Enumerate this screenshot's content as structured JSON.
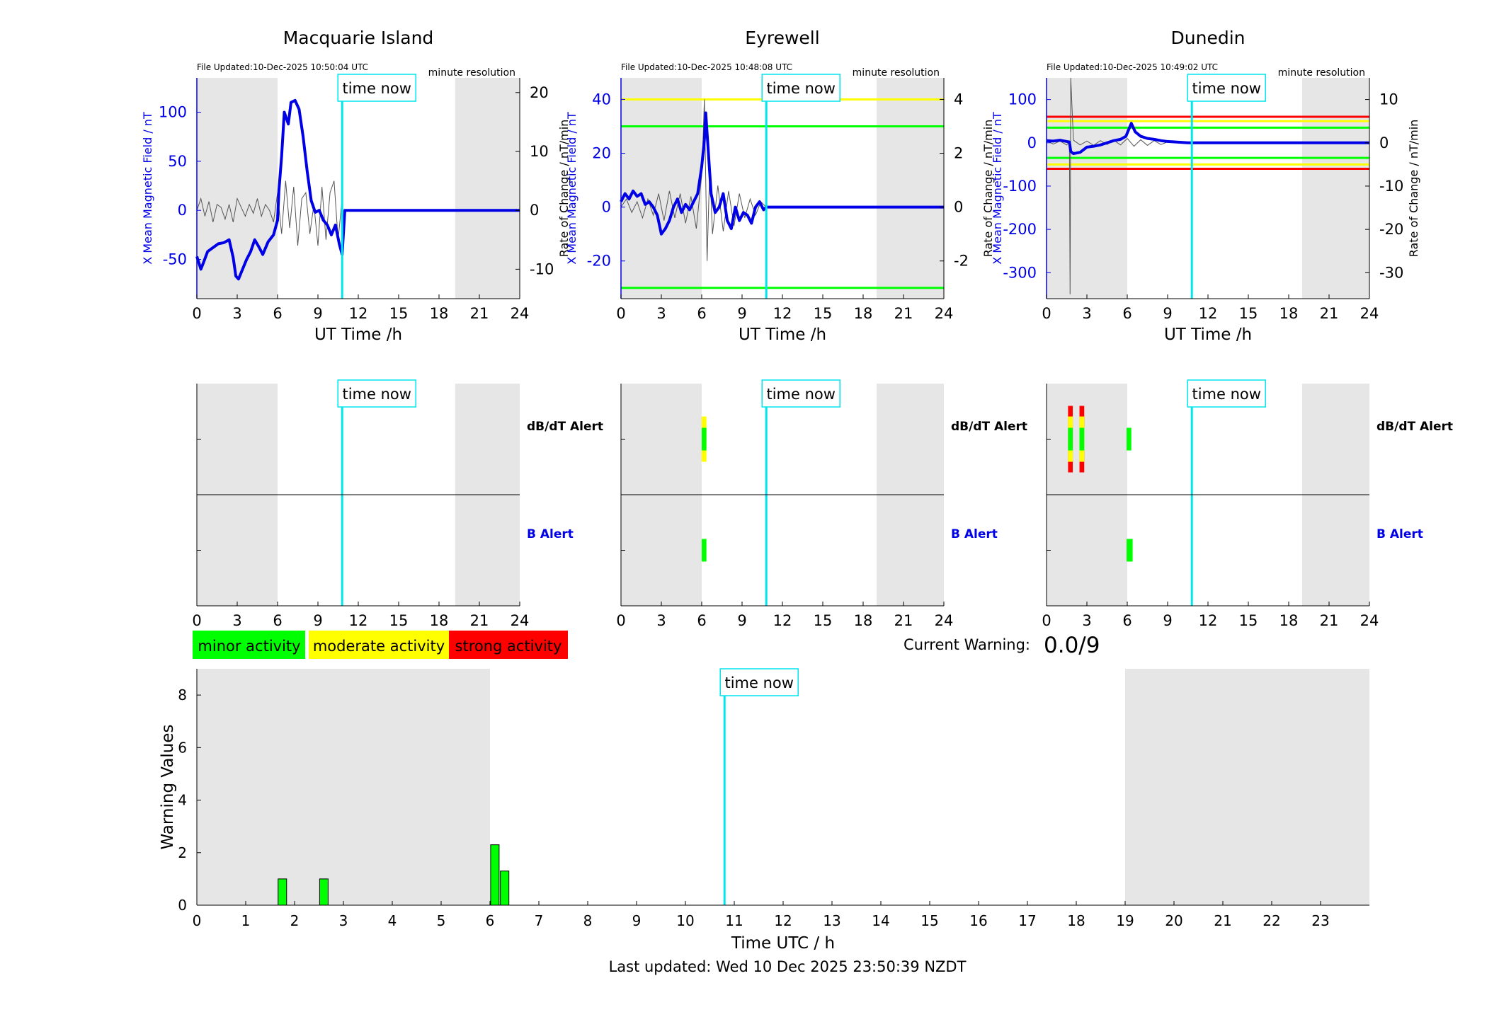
{
  "colors": {
    "shade": "#e6e6e6",
    "blue": "#0000e6",
    "cyan": "#00e5ee",
    "green": "#00ff00",
    "yellow": "#ffff00",
    "red": "#ff0000",
    "grey_trace": "#555555"
  },
  "time_now_label": "time now",
  "legend": [
    {
      "label": "minor activity",
      "color": "#00ff00"
    },
    {
      "label": "moderate activity",
      "color": "#ffff00"
    },
    {
      "label": "strong activity",
      "color": "#ff0000"
    }
  ],
  "current_warning": {
    "label": "Current Warning:",
    "value": "0.0/9"
  },
  "footer": "Last updated: Wed 10 Dec 2025 23:50:39 NZDT",
  "chart_data": [
    {
      "type": "line",
      "title": "Macquarie Island",
      "file_updated": "File Updated:10-Dec-2025 10:50:04 UTC",
      "resolution": "minute resolution",
      "xlabel": "UT Time /h",
      "ylabel_left": "X Mean Magnetic Field / nT",
      "ylabel_right": "Rate of Change / nT/min",
      "xlim": [
        0,
        24
      ],
      "ylim_left": [
        -90,
        135
      ],
      "ylim_right": [
        -15,
        22.5
      ],
      "xticks": [
        "0",
        "3",
        "6",
        "9",
        "12",
        "15",
        "18",
        "21",
        "24"
      ],
      "yticks_left": [
        -50,
        0,
        50,
        100
      ],
      "yticks_right": [
        -10,
        0,
        10,
        20
      ],
      "night_shading": [
        [
          0,
          6
        ],
        [
          19.2,
          24
        ]
      ],
      "time_now": 10.8,
      "thresholds": [],
      "series": [
        {
          "name": "X",
          "x": [
            0,
            0.3,
            0.5,
            0.8,
            1.2,
            1.6,
            2.0,
            2.4,
            2.7,
            2.9,
            3.1,
            3.4,
            3.7,
            4.0,
            4.3,
            4.6,
            4.9,
            5.3,
            5.7,
            6.0,
            6.1,
            6.3,
            6.5,
            6.8,
            7.0,
            7.3,
            7.6,
            7.9,
            8.2,
            8.5,
            8.8,
            9.1,
            9.4,
            9.7,
            10.0,
            10.3,
            10.6,
            10.8,
            11,
            24
          ],
          "y": [
            -47,
            -60,
            -53,
            -42,
            -38,
            -34,
            -33,
            -30,
            -48,
            -67,
            -70,
            -60,
            -50,
            -42,
            -30,
            -37,
            -45,
            -32,
            -25,
            -10,
            20,
            55,
            100,
            88,
            110,
            112,
            103,
            75,
            40,
            10,
            -2,
            0,
            -10,
            -15,
            -25,
            -15,
            -35,
            -45,
            0,
            0
          ]
        },
        {
          "name": "dBdt",
          "axis": "right",
          "x": [
            0,
            0.3,
            0.6,
            0.9,
            1.2,
            1.5,
            1.8,
            2.1,
            2.4,
            2.7,
            3.0,
            3.3,
            3.6,
            3.9,
            4.2,
            4.5,
            4.8,
            5.1,
            5.4,
            5.7,
            6.0,
            6.3,
            6.6,
            6.9,
            7.2,
            7.5,
            7.8,
            8.1,
            8.4,
            8.7,
            9.0,
            9.3,
            9.6,
            9.9,
            10.2,
            10.5,
            10.8
          ],
          "y": [
            0,
            2,
            -1,
            1.5,
            -2,
            1,
            0.5,
            -1.5,
            1,
            -2,
            2,
            0.5,
            -1,
            1,
            -0.5,
            2,
            -1,
            1,
            0,
            -2,
            3,
            -4,
            5,
            -3,
            4,
            -6,
            2,
            3,
            -4,
            1,
            -6,
            4,
            -5,
            3,
            5,
            -5,
            2
          ]
        }
      ]
    },
    {
      "type": "line",
      "title": "Eyrewell",
      "file_updated": "File Updated:10-Dec-2025 10:48:08 UTC",
      "resolution": "minute resolution",
      "xlabel": "UT Time /h",
      "ylabel_left": "X Mean Magnetic Field / nT",
      "ylabel_right": "Rate of Change / nT/min",
      "xlim": [
        0,
        24
      ],
      "ylim_left": [
        -34,
        48
      ],
      "ylim_right": [
        -3.4,
        4.8
      ],
      "xticks": [
        "0",
        "3",
        "6",
        "9",
        "12",
        "15",
        "18",
        "21",
        "24"
      ],
      "yticks_left": [
        -20,
        0,
        20,
        40
      ],
      "yticks_right": [
        -2,
        0,
        2,
        4
      ],
      "night_shading": [
        [
          0,
          6
        ],
        [
          19.0,
          24
        ]
      ],
      "time_now": 10.8,
      "thresholds": [
        {
          "value": 40,
          "color": "#ffff00"
        },
        {
          "value": 30,
          "color": "#00ff00"
        },
        {
          "value": -30,
          "color": "#00ff00"
        }
      ],
      "series": [
        {
          "name": "X",
          "x": [
            0,
            0.3,
            0.6,
            0.9,
            1.2,
            1.5,
            1.8,
            2.1,
            2.4,
            2.7,
            3.0,
            3.3,
            3.6,
            3.9,
            4.2,
            4.5,
            4.8,
            5.1,
            5.4,
            5.7,
            6.0,
            6.2,
            6.3,
            6.5,
            6.7,
            7.0,
            7.3,
            7.6,
            7.9,
            8.2,
            8.5,
            8.8,
            9.1,
            9.4,
            9.7,
            10.0,
            10.3,
            10.6,
            10.8,
            11,
            24
          ],
          "y": [
            2,
            5,
            3,
            6,
            4,
            5,
            1,
            2,
            0,
            -3,
            -10,
            -8,
            -5,
            0,
            3,
            -2,
            1,
            -1,
            2,
            5,
            15,
            25,
            35,
            20,
            5,
            -2,
            0,
            5,
            -5,
            -8,
            0,
            -5,
            -2,
            -3,
            -6,
            0,
            2,
            -1,
            0,
            0,
            0
          ]
        },
        {
          "name": "dBdt",
          "axis": "right",
          "x": [
            0,
            0.4,
            0.8,
            1.2,
            1.6,
            2.0,
            2.4,
            2.8,
            3.2,
            3.6,
            4.0,
            4.4,
            4.8,
            5.2,
            5.6,
            6.0,
            6.2,
            6.4,
            6.6,
            6.8,
            7.2,
            7.6,
            8.0,
            8.4,
            8.8,
            9.2,
            9.6,
            10.0,
            10.4,
            10.8
          ],
          "y": [
            0,
            0.3,
            -0.2,
            0.2,
            -0.4,
            0.3,
            -0.3,
            0.5,
            -0.5,
            0.6,
            -0.4,
            0.5,
            -0.6,
            0.4,
            -0.8,
            1.2,
            4.0,
            -2.0,
            1.5,
            -1.0,
            0.8,
            -0.9,
            0.6,
            -0.7,
            0.5,
            -0.4,
            0.3,
            -0.3,
            0.2,
            0
          ]
        }
      ]
    },
    {
      "type": "line",
      "title": "Dunedin",
      "file_updated": "File Updated:10-Dec-2025 10:49:02 UTC",
      "resolution": "minute resolution",
      "xlabel": "UT Time /h",
      "ylabel_left": "X Mean Magnetic Field / nT",
      "ylabel_right": "Rate of Change / nT/min",
      "xlim": [
        0,
        24
      ],
      "ylim_left": [
        -360,
        150
      ],
      "ylim_right": [
        -36,
        15
      ],
      "xticks": [
        "0",
        "3",
        "6",
        "9",
        "12",
        "15",
        "18",
        "21",
        "24"
      ],
      "yticks_left": [
        -300,
        -200,
        -100,
        0,
        100
      ],
      "yticks_right": [
        -30,
        -20,
        -10,
        0,
        10
      ],
      "night_shading": [
        [
          0,
          6
        ],
        [
          19.0,
          24
        ]
      ],
      "time_now": 10.8,
      "thresholds": [
        {
          "value": 60,
          "color": "#ff0000"
        },
        {
          "value": 50,
          "color": "#ffff00"
        },
        {
          "value": 35,
          "color": "#00ff00"
        },
        {
          "value": -35,
          "color": "#00ff00"
        },
        {
          "value": -50,
          "color": "#ffff00"
        },
        {
          "value": -60,
          "color": "#ff0000"
        }
      ],
      "series": [
        {
          "name": "X",
          "x": [
            0,
            0.5,
            1.0,
            1.5,
            1.7,
            1.8,
            2.0,
            2.5,
            3.0,
            3.5,
            4.0,
            4.5,
            5.0,
            5.5,
            5.9,
            6.1,
            6.3,
            6.6,
            7.0,
            7.5,
            8.0,
            8.5,
            9.0,
            9.5,
            10.0,
            10.5,
            11,
            24
          ],
          "y": [
            5,
            4,
            6,
            3,
            2,
            -20,
            -25,
            -22,
            -10,
            -8,
            -5,
            0,
            5,
            8,
            15,
            30,
            45,
            25,
            15,
            10,
            8,
            5,
            3,
            2,
            1,
            0,
            0,
            0
          ]
        },
        {
          "name": "dBdt",
          "axis": "right",
          "x": [
            0,
            0.5,
            1.0,
            1.5,
            1.7,
            1.75,
            1.8,
            2.0,
            2.5,
            3.0,
            3.5,
            4.0,
            4.5,
            5.0,
            5.5,
            6.0,
            6.5,
            7.0,
            7.5,
            8.0,
            8.5,
            9.0
          ],
          "y": [
            0.5,
            -0.3,
            0.4,
            -0.5,
            0.3,
            -35,
            15,
            0.6,
            -0.5,
            0.4,
            -0.6,
            0.5,
            -0.4,
            0.6,
            -0.5,
            1.0,
            -0.8,
            0.7,
            -0.6,
            0.5,
            -0.4,
            0.2
          ]
        }
      ]
    },
    {
      "type": "heatmap",
      "title": "",
      "labels": [
        "dB/dT Alert",
        "B Alert"
      ],
      "xticks": [
        "0",
        "3",
        "6",
        "9",
        "12",
        "15",
        "18",
        "21",
        "24"
      ],
      "xlim": [
        0,
        24
      ],
      "night_shading": [
        [
          0,
          6
        ],
        [
          19.2,
          24
        ]
      ],
      "time_now": 10.8,
      "dbdt_alerts": [],
      "b_alerts": []
    },
    {
      "type": "heatmap",
      "title": "",
      "labels": [
        "dB/dT Alert",
        "B Alert"
      ],
      "xticks": [
        "0",
        "3",
        "6",
        "9",
        "12",
        "15",
        "18",
        "21",
        "24"
      ],
      "xlim": [
        0,
        24
      ],
      "night_shading": [
        [
          0,
          6
        ],
        [
          19.0,
          24
        ]
      ],
      "time_now": 10.8,
      "dbdt_alerts": [
        {
          "x0": 6.0,
          "x1": 6.35,
          "level": 2
        }
      ],
      "b_alerts": [
        {
          "x0": 6.0,
          "x1": 6.35,
          "level": 1
        }
      ]
    },
    {
      "type": "heatmap",
      "title": "",
      "labels": [
        "dB/dT Alert",
        "B Alert"
      ],
      "xticks": [
        "0",
        "3",
        "6",
        "9",
        "12",
        "15",
        "18",
        "21",
        "24"
      ],
      "xlim": [
        0,
        24
      ],
      "night_shading": [
        [
          0,
          6
        ],
        [
          19.0,
          24
        ]
      ],
      "time_now": 10.8,
      "dbdt_alerts": [
        {
          "x0": 1.6,
          "x1": 1.95,
          "level": 3
        },
        {
          "x0": 2.45,
          "x1": 2.8,
          "level": 3
        },
        {
          "x0": 5.95,
          "x1": 6.3,
          "level": 1
        }
      ],
      "b_alerts": [
        {
          "x0": 5.95,
          "x1": 6.4,
          "level": 1
        }
      ]
    },
    {
      "type": "bar",
      "title": "",
      "xlabel": "Time UTC / h",
      "ylabel": "Warning Values",
      "xlim": [
        0,
        24
      ],
      "ylim": [
        0,
        9
      ],
      "xticks": [
        "0",
        "1",
        "2",
        "3",
        "4",
        "5",
        "6",
        "7",
        "8",
        "9",
        "10",
        "11",
        "12",
        "13",
        "14",
        "15",
        "16",
        "17",
        "18",
        "19",
        "20",
        "21",
        "22",
        "23"
      ],
      "yticks": [
        0,
        2,
        4,
        6,
        8
      ],
      "night_shading": [
        [
          0,
          6
        ],
        [
          19.0,
          24
        ]
      ],
      "time_now": 10.8,
      "bars": [
        {
          "x": 1.75,
          "value": 1
        },
        {
          "x": 2.6,
          "value": 1
        },
        {
          "x": 6.1,
          "value": 2.3
        },
        {
          "x": 6.3,
          "value": 1.3
        }
      ]
    }
  ]
}
